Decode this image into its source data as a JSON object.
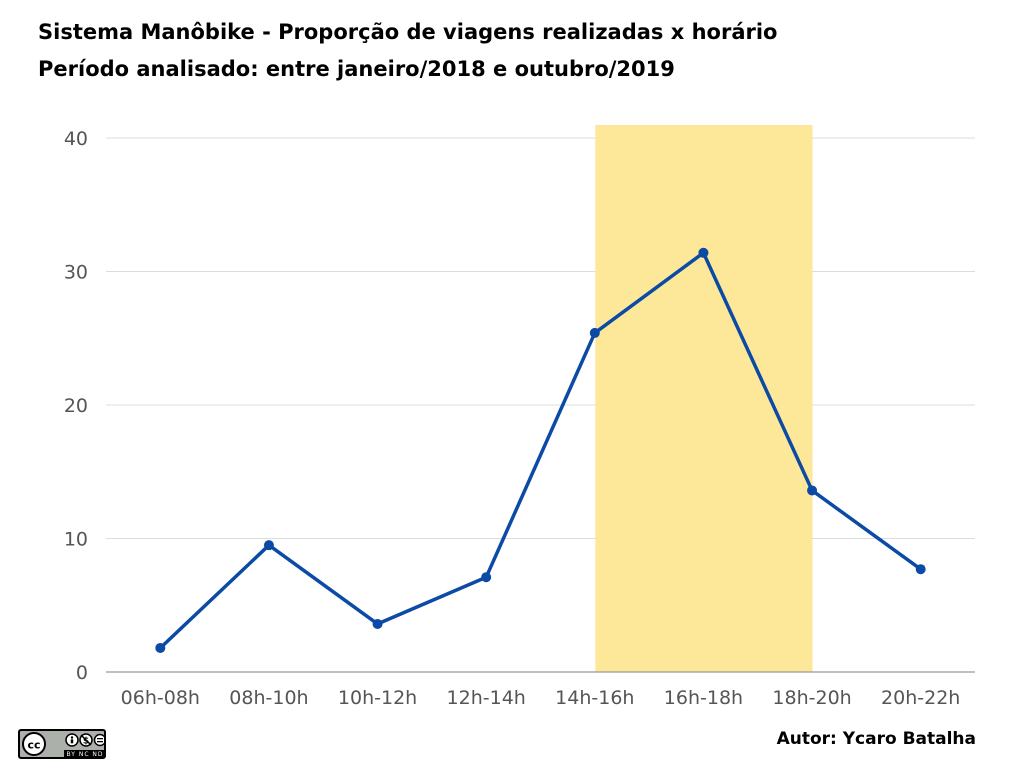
{
  "chart_data": {
    "type": "line",
    "title": "Sistema Manôbike - Proporção de viagens realizadas x horário",
    "subtitle": "Período analisado: entre janeiro/2018 e outubro/2019",
    "xlabel": "",
    "ylabel": "",
    "categories": [
      "06h-08h",
      "08h-10h",
      "10h-12h",
      "12h-14h",
      "14h-16h",
      "16h-18h",
      "18h-20h",
      "20h-22h"
    ],
    "series": [
      {
        "values": [
          1.8,
          9.5,
          3.6,
          7.1,
          25.4,
          31.4,
          13.6,
          7.7
        ],
        "color": "#0b4aa5"
      }
    ],
    "ylim": [
      0,
      40
    ],
    "yticks": [
      0,
      10,
      20,
      30,
      40
    ],
    "grid": true,
    "legend": "none",
    "highlight": {
      "from": "14h-16h",
      "to": "18h-20h",
      "color": "#fde89a"
    }
  },
  "footer": {
    "author": "Autor: Ycaro Batalha",
    "license_text": "BY NC ND",
    "license_icon": "cc-by-nc-nd-icon"
  }
}
